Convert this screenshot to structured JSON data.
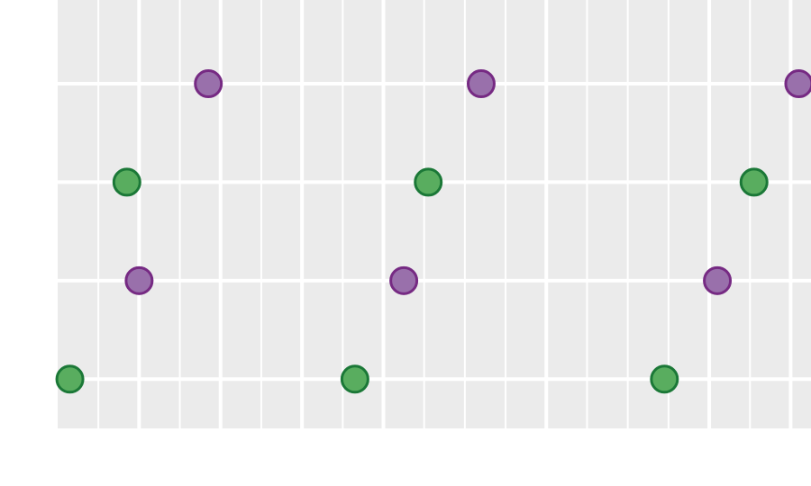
{
  "chart_data": {
    "type": "scatter",
    "title": "",
    "xlabel": "",
    "ylabel": "",
    "grid": true,
    "legend": "none",
    "colors": {
      "panel_background": "#EBEBEB",
      "grid_line": "#FFFFFF",
      "green_fill": "#59AD5F",
      "green_stroke": "#1B7837",
      "purple_fill": "#9970AB",
      "purple_stroke": "#762A83"
    },
    "xlim": [
      0,
      18.5
    ],
    "ylim": [
      0.5,
      4.85
    ],
    "x_major_breaks": [
      2,
      4,
      6,
      8,
      12,
      16,
      18
    ],
    "x_minor_breaks": [
      1,
      3,
      5,
      7,
      9,
      10,
      11,
      13,
      14,
      15,
      17
    ],
    "y_breaks": [
      1,
      2,
      3,
      4
    ],
    "series": [
      {
        "fill": "#59AD5F",
        "stroke": "#1B7837",
        "points": [
          {
            "x": 0.3,
            "y": 1
          },
          {
            "x": 1.7,
            "y": 3
          },
          {
            "x": 7.3,
            "y": 1
          },
          {
            "x": 9.1,
            "y": 3
          },
          {
            "x": 14.9,
            "y": 1
          },
          {
            "x": 17.1,
            "y": 3
          }
        ]
      },
      {
        "fill": "#9970AB",
        "stroke": "#762A83",
        "points": [
          {
            "x": 2.0,
            "y": 2
          },
          {
            "x": 3.7,
            "y": 4
          },
          {
            "x": 8.5,
            "y": 2
          },
          {
            "x": 10.4,
            "y": 4
          },
          {
            "x": 16.2,
            "y": 2
          },
          {
            "x": 18.2,
            "y": 4
          }
        ]
      }
    ]
  }
}
